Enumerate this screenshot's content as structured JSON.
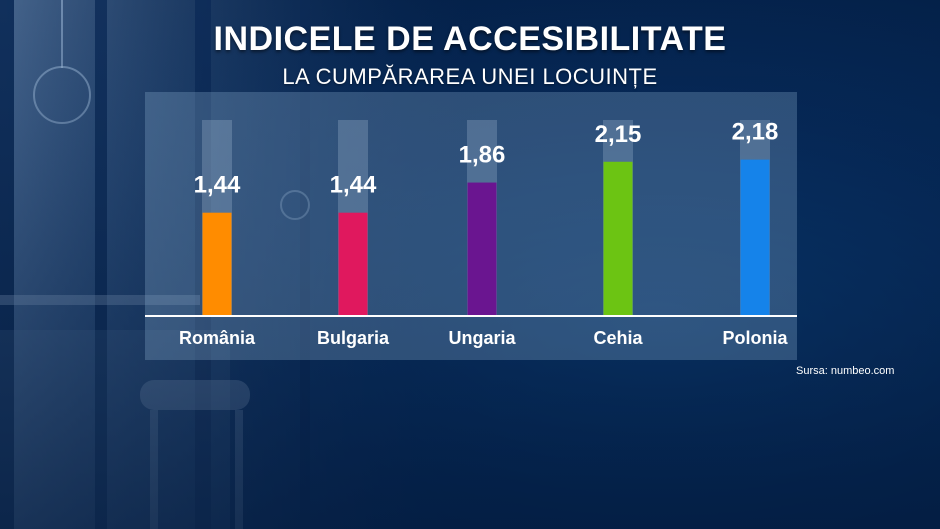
{
  "title": "INDICELE DE ACCESIBILITATE",
  "subtitle": "LA CUMPĂRAREA UNEI LOCUINȚE",
  "source": "Sursa: numbeo.com",
  "chart_data": {
    "type": "bar",
    "categories": [
      "România",
      "Bulgaria",
      "Ungaria",
      "Cehia",
      "Polonia"
    ],
    "values": [
      1.44,
      1.44,
      1.86,
      2.15,
      2.18
    ],
    "value_labels": [
      "1,44",
      "1,44",
      "1,86",
      "2,15",
      "2,18"
    ],
    "colors": [
      "#ff8c00",
      "#e0185e",
      "#6a1590",
      "#6cc413",
      "#1583ea"
    ],
    "ylim": [
      0,
      2.3
    ],
    "grid": false,
    "legend": "none"
  }
}
